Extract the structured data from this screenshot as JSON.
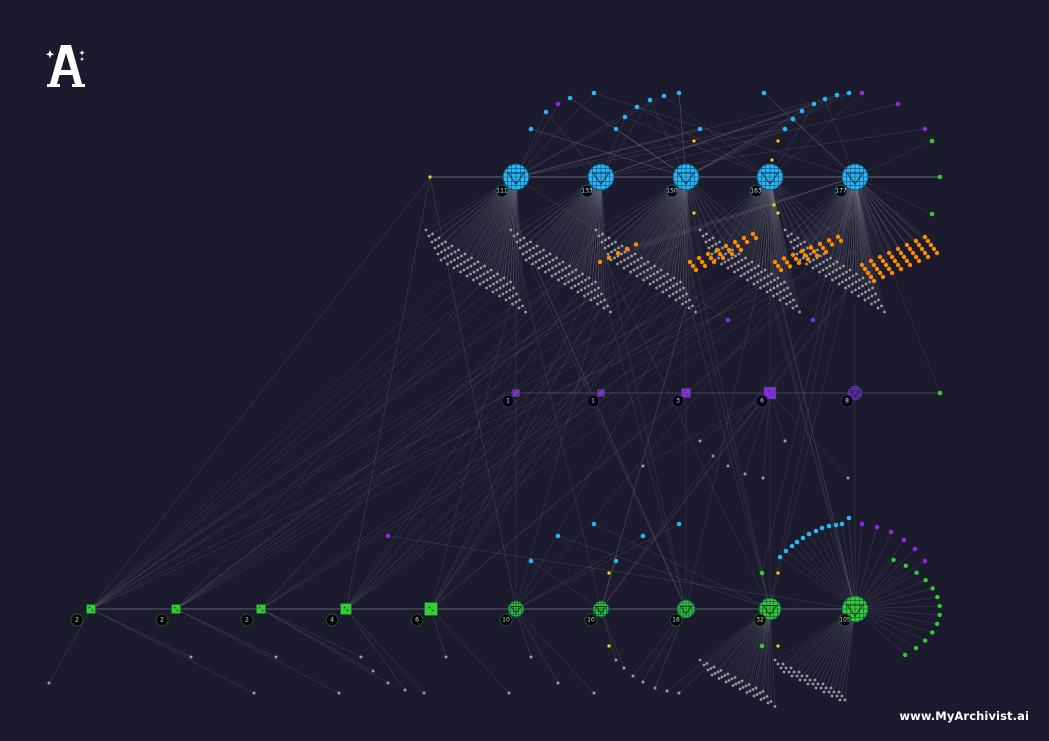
{
  "logo": {
    "letter": "A",
    "icon": "star-sparkle-icon"
  },
  "footer": {
    "url": "www.MyArchivist.ai"
  },
  "colors": {
    "background": "#1b1b2d",
    "edge": "#8a8a99",
    "blue": "#29b6f6",
    "purple": "#8a2be2",
    "green": "#33cc33",
    "orange": "#ff8c00",
    "yellow": "#ffd11a",
    "grey": "#9a9aa6"
  },
  "rows": {
    "top": {
      "color": "blue",
      "shape": "globe",
      "hubs": [
        {
          "label": "111"
        },
        {
          "label": "133"
        },
        {
          "label": "150"
        },
        {
          "label": "163"
        },
        {
          "label": "177"
        }
      ]
    },
    "middle": {
      "color": "purple",
      "hubs": [
        {
          "label": "1",
          "shape": "square"
        },
        {
          "label": "1",
          "shape": "square"
        },
        {
          "label": "3",
          "shape": "square"
        },
        {
          "label": "6",
          "shape": "square"
        },
        {
          "label": "8",
          "shape": "globe"
        }
      ]
    },
    "bottom": {
      "color": "green",
      "hubs": [
        {
          "label": "2",
          "shape": "square"
        },
        {
          "label": "2",
          "shape": "square"
        },
        {
          "label": "2",
          "shape": "square"
        },
        {
          "label": "4",
          "shape": "square"
        },
        {
          "label": "6",
          "shape": "square"
        },
        {
          "label": "10",
          "shape": "globe"
        },
        {
          "label": "10",
          "shape": "globe"
        },
        {
          "label": "16",
          "shape": "globe"
        },
        {
          "label": "32",
          "shape": "globe"
        },
        {
          "label": "105",
          "shape": "globe"
        }
      ]
    }
  }
}
